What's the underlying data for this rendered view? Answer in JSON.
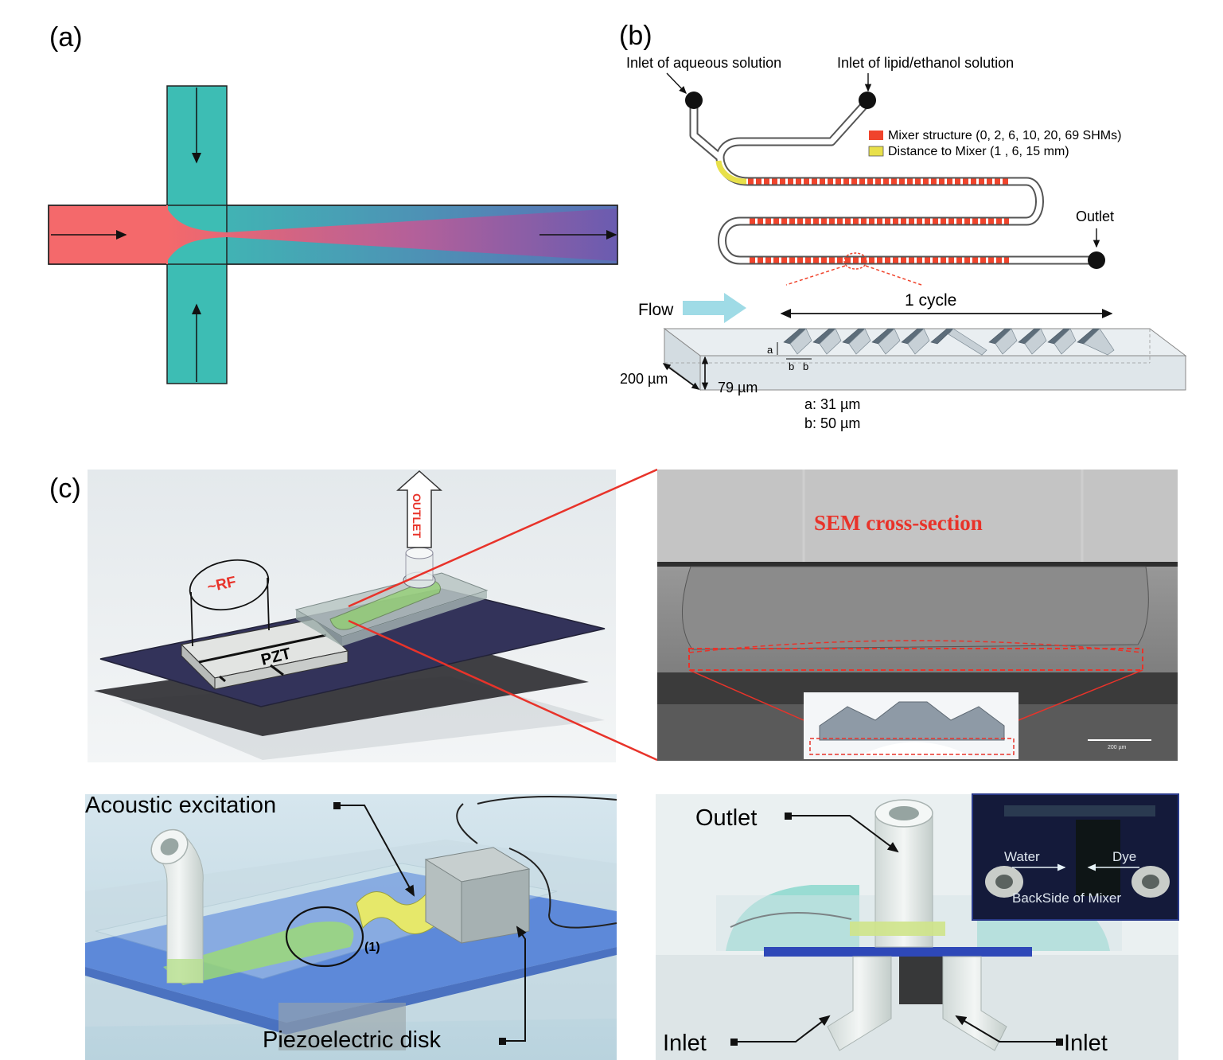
{
  "panels": {
    "a": {
      "label": "(a)"
    },
    "b": {
      "label": "(b)",
      "inlet_aqueous": "Inlet of aqueous solution",
      "inlet_lipid": "Inlet of lipid/ethanol solution",
      "legend": [
        {
          "label": "Mixer structure (0, 2, 6, 10, 20, 69 SHMs)",
          "color": "#f0442c"
        },
        {
          "label": "Distance to Mixer (1 , 6, 15 mm)",
          "color": "#e8e04a"
        }
      ],
      "outlet": "Outlet",
      "flow": "Flow",
      "cycle": "1 cycle",
      "dim_width": "200 µm",
      "dim_height": "79 µm",
      "dim_a_mark": "a",
      "dim_b_mark": "b",
      "dim_a": "a: 31 µm",
      "dim_b": "b: 50 µm"
    },
    "c": {
      "label": "(c)",
      "rf": "~RF",
      "pzt": "PZT",
      "outlet_arrow": "OUTLET",
      "sem_title": "SEM cross-section",
      "sem_scale": "200 µm",
      "acoustic_excitation": "Acoustic excitation",
      "piezoelectric_disk": "Piezoelectric disk",
      "circle_marker": "(1)",
      "outlet": "Outlet",
      "inlet_left": "Inlet",
      "inlet_right": "Inlet",
      "inset_water": "Water",
      "inset_dye": "Dye",
      "inset_caption": "BackSide of Mixer"
    }
  },
  "colors": {
    "aqueous_teal": "#3dbdb4",
    "lipid_red": "#f4696b",
    "mixed_purple": "#6a5cb0",
    "mixer_red": "#f0442c",
    "distance_yellow": "#e8e04a",
    "flow_arrow": "#9fdbe6",
    "device_plate": "#33335a",
    "sem_red_text": "#e8332a"
  }
}
